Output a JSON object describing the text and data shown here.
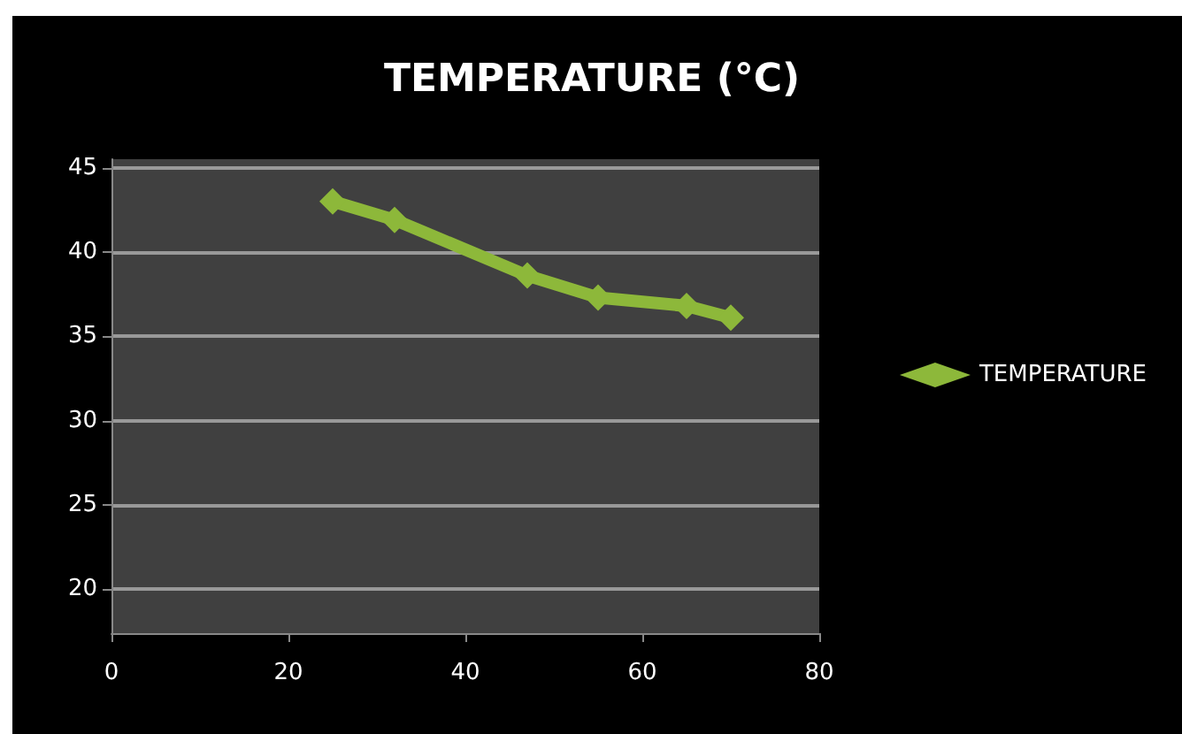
{
  "chart_data": {
    "type": "line",
    "title": "TEMPERATURE (°C)",
    "x": [
      25,
      32,
      47,
      55,
      65,
      70
    ],
    "series": [
      {
        "name": "TEMPERATURE",
        "color": "#8db83a",
        "values": [
          43.0,
          41.9,
          38.6,
          37.3,
          36.8,
          36.1
        ]
      }
    ],
    "xlim": [
      0,
      80
    ],
    "xticks": [
      0,
      20,
      40,
      60,
      80
    ],
    "ylim": [
      17.4,
      45.5
    ],
    "yticks": [
      20,
      25,
      30,
      35,
      40,
      45
    ],
    "grid": "y",
    "legend": "right",
    "marker": "diamond",
    "line_style": "solid"
  }
}
